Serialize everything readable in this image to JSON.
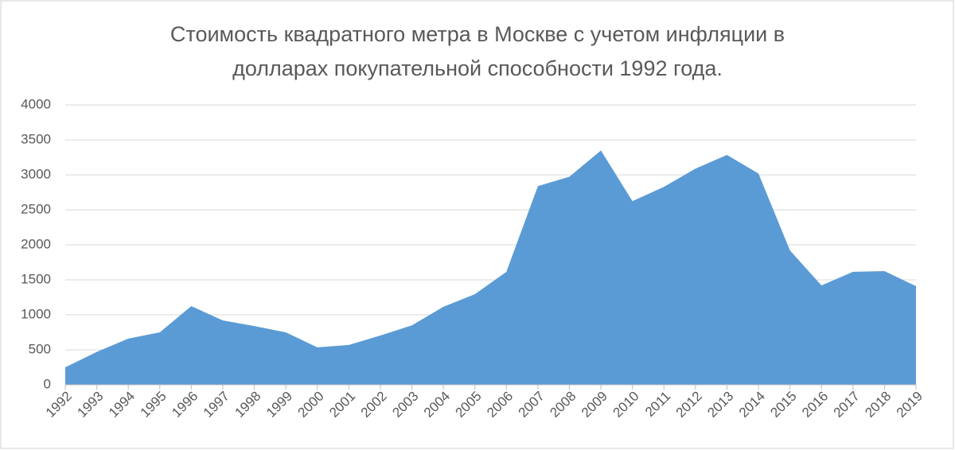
{
  "chart_data": {
    "type": "area",
    "title": [
      "Стоимость квадратного метра в Москве с учетом инфляции в",
      "долларах покупательной способности 1992 года."
    ],
    "categories": [
      "1992",
      "1993",
      "1994",
      "1995",
      "1996",
      "1997",
      "1998",
      "1999",
      "2000",
      "2001",
      "2002",
      "2003",
      "2004",
      "2005",
      "2006",
      "2007",
      "2008",
      "2009",
      "2010",
      "2011",
      "2012",
      "2013",
      "2014",
      "2015",
      "2016",
      "2017",
      "2018",
      "2019"
    ],
    "values": [
      250,
      470,
      660,
      750,
      1125,
      920,
      840,
      750,
      535,
      570,
      705,
      850,
      1115,
      1295,
      1615,
      2840,
      2975,
      3350,
      2625,
      2830,
      3090,
      3285,
      3020,
      1920,
      1420,
      1615,
      1625,
      1410
    ],
    "color": "#5b9bd5",
    "ylim": [
      0,
      4000
    ],
    "yticks": [
      0,
      500,
      1000,
      1500,
      2000,
      2500,
      3000,
      3500,
      4000
    ],
    "grid": true
  }
}
